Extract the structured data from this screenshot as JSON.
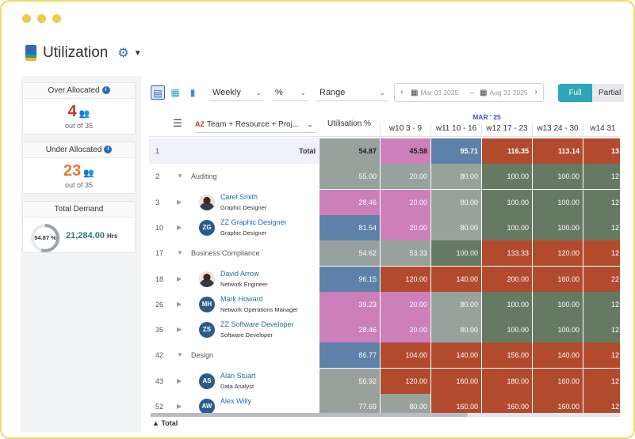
{
  "window": {
    "title": "Utilization"
  },
  "left": {
    "over": {
      "title": "Over Allocated",
      "value": "4",
      "sub": "out of 35",
      "color": "#c0392b"
    },
    "under": {
      "title": "Under Allocated",
      "value": "23",
      "sub": "out of 35",
      "color": "#e07b39"
    },
    "demand": {
      "title": "Total Demand",
      "percent": "54.87 %",
      "value": "21,284.00",
      "unit": "Hrs"
    }
  },
  "toolbar": {
    "period": "Weekly",
    "unit": "%",
    "range": "Range",
    "start_date": "Mar 03 2025",
    "end_date": "Aug 31 2025",
    "separator": "–",
    "full_label": "Full",
    "partial_label": "Partial"
  },
  "grid": {
    "group_by": "Team + Resource + Proj...",
    "util_header": "Utilisation %",
    "month": "MAR ' 25",
    "weeks": [
      "w10  3 - 9",
      "w11  10 - 16",
      "w12  17 - 23",
      "w13  24 - 30",
      "w14  31"
    ],
    "rows": [
      {
        "num": "1",
        "label": "Total",
        "util": "54.87",
        "cells": [
          "45.58",
          "95.71",
          "116.35",
          "113.14",
          "13"
        ]
      },
      {
        "num": "2",
        "label": "Auditing",
        "util": "55.00",
        "cells": [
          "20.00",
          "80.00",
          "100.00",
          "100.00",
          "12"
        ]
      },
      {
        "num": "3",
        "name": "Carel Smith",
        "role": "Graphic Designer",
        "util": "28.46",
        "cells": [
          "20.00",
          "80.00",
          "100.00",
          "100.00",
          "12"
        ]
      },
      {
        "num": "10",
        "initials": "ZG",
        "name": "ZZ Graphic Designer",
        "role": "Graphic Designer",
        "util": "81.54",
        "cells": [
          "20.00",
          "80.00",
          "100.00",
          "100.00",
          "12"
        ]
      },
      {
        "num": "17",
        "label": "Business Compliance",
        "util": "54.62",
        "cells": [
          "53.33",
          "100.00",
          "133.33",
          "120.00",
          "12"
        ]
      },
      {
        "num": "18",
        "name": "David Arrow",
        "role": "Network Engineer",
        "util": "96.15",
        "cells": [
          "120.00",
          "140.00",
          "200.00",
          "160.00",
          "22"
        ]
      },
      {
        "num": "26",
        "initials": "MH",
        "name": "Mark Howard",
        "role": "Network Operations Manager",
        "util": "39.23",
        "cells": [
          "20.00",
          "80.00",
          "100.00",
          "100.00",
          "12"
        ]
      },
      {
        "num": "35",
        "initials": "ZS",
        "name": "ZZ Software Developer",
        "role": "Software Developer",
        "util": "28.46",
        "cells": [
          "20.00",
          "80.00",
          "100.00",
          "100.00",
          "12"
        ]
      },
      {
        "num": "42",
        "label": "Design",
        "util": "86.77",
        "cells": [
          "104.00",
          "140.00",
          "156.00",
          "140.00",
          "12"
        ]
      },
      {
        "num": "43",
        "initials": "AS",
        "name": "Alan Stuart",
        "role": "Data Analyst",
        "util": "56.92",
        "cells": [
          "120.00",
          "160.00",
          "180.00",
          "160.00",
          "12"
        ]
      },
      {
        "num": "52",
        "initials": "AW",
        "name": "Alex Willy",
        "role": "",
        "util": "77.69",
        "cells": [
          "80.00",
          "160.00",
          "160.00",
          "160.00",
          "12"
        ]
      }
    ]
  },
  "footer": {
    "total_label": "Total"
  },
  "colors": {
    "pink": "#cc7fb8",
    "blue": "#5d81a8",
    "grey": "#98a29c",
    "green": "#667a63",
    "red": "#b24a2e",
    "total_bg": "#eef1f8",
    "accent": "#2ea7b8"
  }
}
